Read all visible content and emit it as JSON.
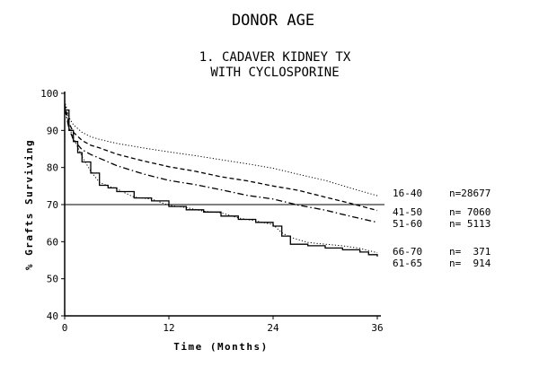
{
  "chart_data": {
    "type": "line",
    "title": "DONOR AGE",
    "subtitle_lines": [
      "1. CADAVER KIDNEY TX",
      "WITH CYCLOSPORINE"
    ],
    "xlabel": "Time (Months)",
    "ylabel": "% Grafts Surviving",
    "xlim": [
      0,
      36
    ],
    "ylim": [
      40,
      100
    ],
    "x_ticks": [
      0,
      12,
      24,
      36
    ],
    "x_tick_labels": [
      "0",
      "12",
      "24",
      "36"
    ],
    "y_ticks": [
      40,
      50,
      60,
      70,
      80,
      90,
      100
    ],
    "y_tick_labels": [
      "40",
      "50",
      "60",
      "70",
      "80",
      "90",
      "100"
    ],
    "reference_line_y": 70,
    "grid": false,
    "legend_placement": "right",
    "series": [
      {
        "name": "16-40",
        "n_label": "n=28677",
        "style": "dotted",
        "x": [
          0,
          0.5,
          1,
          2,
          3,
          4,
          6,
          9,
          12,
          15,
          18,
          21,
          24,
          27,
          30,
          33,
          36
        ],
        "y": [
          98,
          93.5,
          91.5,
          89.5,
          88.3,
          87.6,
          86.5,
          85.3,
          84.2,
          83.2,
          82.1,
          81,
          79.8,
          78.1,
          76.5,
          74.4,
          72.4
        ]
      },
      {
        "name": "41-50",
        "n_label": "n= 7060",
        "style": "dashed",
        "x": [
          0,
          0.5,
          1,
          2,
          3,
          4,
          6,
          9,
          12,
          15,
          18,
          21,
          24,
          27,
          30,
          33,
          36
        ],
        "y": [
          97,
          92,
          89.5,
          87.3,
          86,
          85.3,
          83.6,
          81.8,
          80.2,
          79,
          77.5,
          76.4,
          75,
          73.8,
          72,
          70.3,
          68.4
        ]
      },
      {
        "name": "51-60",
        "n_label": "n= 5113",
        "style": "dashdot",
        "x": [
          0,
          0.5,
          1,
          2,
          3,
          4,
          6,
          9,
          12,
          15,
          18,
          21,
          24,
          27,
          30,
          33,
          36
        ],
        "y": [
          96,
          90.5,
          87.5,
          84.8,
          83.5,
          82.5,
          80.5,
          78.3,
          76.5,
          75.4,
          74,
          72.5,
          71.5,
          69.8,
          68.5,
          66.8,
          65.2
        ]
      },
      {
        "name": "66-70",
        "n_label": "n=  371",
        "style": "dotted",
        "x": [
          0,
          0.5,
          1,
          1.5,
          2,
          3,
          4,
          5,
          6,
          8,
          10,
          12,
          14,
          16,
          18,
          20,
          22,
          24,
          25,
          26,
          28,
          30,
          32,
          34,
          36
        ],
        "y": [
          96,
          91,
          88,
          85.5,
          83,
          79,
          76,
          75,
          74.2,
          72,
          71.5,
          69.8,
          69.2,
          68.2,
          67.8,
          66.4,
          65.6,
          64.6,
          62.4,
          61.2,
          59.8,
          59.3,
          58.9,
          58.2,
          57
        ]
      },
      {
        "name": "61-65",
        "n_label": "n=  914",
        "style": "solid",
        "x": [
          0,
          0.5,
          1,
          1.5,
          2,
          3,
          4,
          5,
          6,
          8,
          10,
          12,
          14,
          16,
          18,
          20,
          22,
          24,
          25,
          26,
          28,
          30,
          32,
          34,
          35,
          36
        ],
        "y": [
          95.5,
          90,
          87,
          84,
          81.5,
          78.5,
          75.2,
          74.5,
          73.5,
          71.8,
          71,
          69.5,
          68.6,
          68,
          66.9,
          66,
          65.2,
          64.2,
          61.5,
          59.3,
          58.9,
          58.3,
          57.8,
          57.2,
          56.5,
          56
        ]
      }
    ]
  }
}
